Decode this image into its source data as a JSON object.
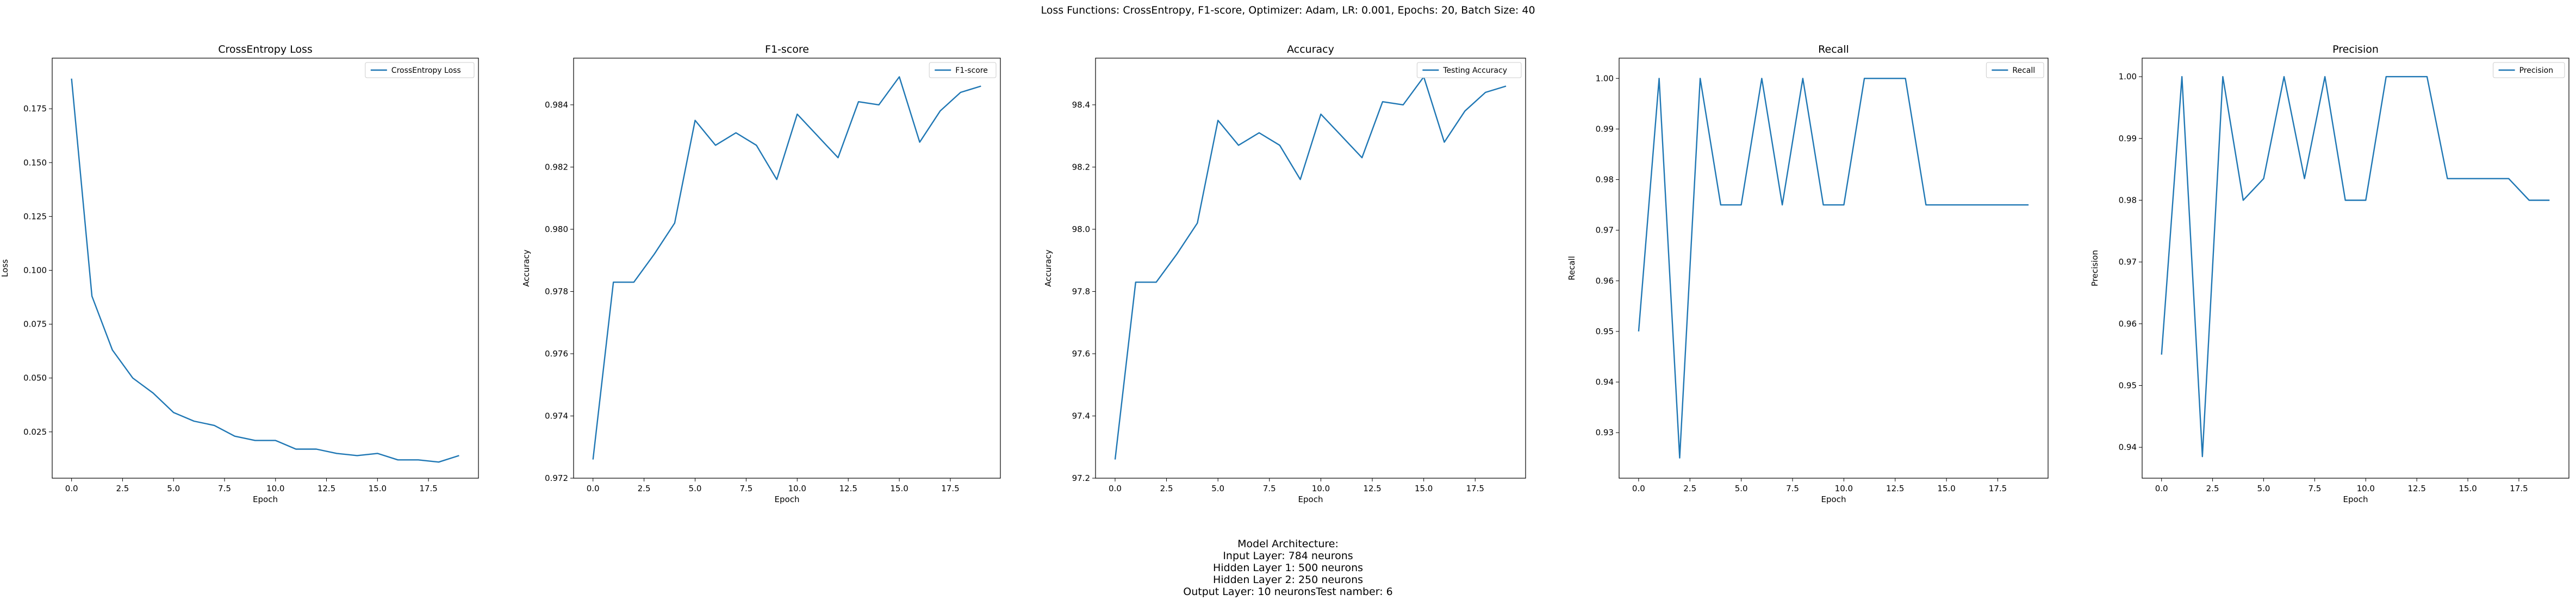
{
  "figure": {
    "suptitle": "Loss Functions: CrossEntropy, F1-score, Optimizer: Adam, LR: 0.001, Epochs: 20, Batch Size: 40",
    "architecture_lines": [
      "Model Architecture:",
      "Input Layer: 784 neurons",
      "Hidden Layer 1: 500 neurons",
      "Hidden Layer 2: 250 neurons",
      "Output Layer: 10 neuronsTest namber: 6"
    ],
    "line_color": "#1f77b4"
  },
  "chart_data": [
    {
      "type": "line",
      "title": "CrossEntropy Loss",
      "xlabel": "Epoch",
      "ylabel": "Loss",
      "legend": "top-right",
      "grid": false,
      "xlim": [
        -0.95,
        19.95
      ],
      "ylim": [
        0.0035,
        0.1985
      ],
      "xticks": [
        0,
        2.5,
        5,
        7.5,
        10,
        12.5,
        15,
        17.5
      ],
      "xtick_labels": [
        "0.0",
        "2.5",
        "5.0",
        "7.5",
        "10.0",
        "12.5",
        "15.0",
        "17.5"
      ],
      "yticks": [
        0.025,
        0.05,
        0.075,
        0.1,
        0.125,
        0.15,
        0.175
      ],
      "ytick_labels": [
        "0.025",
        "0.050",
        "0.075",
        "0.100",
        "0.125",
        "0.150",
        "0.175"
      ],
      "series": [
        {
          "name": "CrossEntropy Loss",
          "x": [
            0,
            1,
            2,
            3,
            4,
            5,
            6,
            7,
            8,
            9,
            10,
            11,
            12,
            13,
            14,
            15,
            16,
            17,
            18,
            19
          ],
          "y": [
            0.189,
            0.088,
            0.063,
            0.05,
            0.043,
            0.034,
            0.03,
            0.028,
            0.023,
            0.021,
            0.021,
            0.017,
            0.017,
            0.015,
            0.014,
            0.015,
            0.012,
            0.012,
            0.011,
            0.014
          ]
        }
      ]
    },
    {
      "type": "line",
      "title": "F1-score",
      "xlabel": "Epoch",
      "ylabel": "Accuracy",
      "legend": "top-right",
      "grid": false,
      "xlim": [
        -0.95,
        19.95
      ],
      "ylim": [
        0.972,
        0.9855
      ],
      "xticks": [
        0,
        2.5,
        5,
        7.5,
        10,
        12.5,
        15,
        17.5
      ],
      "xtick_labels": [
        "0.0",
        "2.5",
        "5.0",
        "7.5",
        "10.0",
        "12.5",
        "15.0",
        "17.5"
      ],
      "yticks": [
        0.972,
        0.974,
        0.976,
        0.978,
        0.98,
        0.982,
        0.984
      ],
      "ytick_labels": [
        "0.972",
        "0.974",
        "0.976",
        "0.978",
        "0.980",
        "0.982",
        "0.984"
      ],
      "series": [
        {
          "name": "F1-score",
          "x": [
            0,
            1,
            2,
            3,
            4,
            5,
            6,
            7,
            8,
            9,
            10,
            11,
            12,
            13,
            14,
            15,
            16,
            17,
            18,
            19
          ],
          "y": [
            0.9726,
            0.9783,
            0.9783,
            0.9792,
            0.9802,
            0.9835,
            0.9827,
            0.9831,
            0.9827,
            0.9816,
            0.9837,
            0.983,
            0.9823,
            0.9841,
            0.984,
            0.9849,
            0.9828,
            0.9838,
            0.9844,
            0.9846
          ]
        }
      ]
    },
    {
      "type": "line",
      "title": "Accuracy",
      "xlabel": "Epoch",
      "ylabel": "Accuracy",
      "legend": "top-right",
      "grid": false,
      "xlim": [
        -0.95,
        19.95
      ],
      "ylim": [
        97.2,
        98.55
      ],
      "xticks": [
        0,
        2.5,
        5,
        7.5,
        10,
        12.5,
        15,
        17.5
      ],
      "xtick_labels": [
        "0.0",
        "2.5",
        "5.0",
        "7.5",
        "10.0",
        "12.5",
        "15.0",
        "17.5"
      ],
      "yticks": [
        97.2,
        97.4,
        97.6,
        97.8,
        98.0,
        98.2,
        98.4
      ],
      "ytick_labels": [
        "97.2",
        "97.4",
        "97.6",
        "97.8",
        "98.0",
        "98.2",
        "98.4"
      ],
      "series": [
        {
          "name": "Testing Accuracy",
          "x": [
            0,
            1,
            2,
            3,
            4,
            5,
            6,
            7,
            8,
            9,
            10,
            11,
            12,
            13,
            14,
            15,
            16,
            17,
            18,
            19
          ],
          "y": [
            97.26,
            97.83,
            97.83,
            97.92,
            98.02,
            98.35,
            98.27,
            98.31,
            98.27,
            98.16,
            98.37,
            98.3,
            98.23,
            98.41,
            98.4,
            98.49,
            98.28,
            98.38,
            98.44,
            98.46
          ]
        }
      ]
    },
    {
      "type": "line",
      "title": "Recall",
      "xlabel": "Epoch",
      "ylabel": "Recall",
      "legend": "top-right",
      "grid": false,
      "xlim": [
        -0.95,
        19.95
      ],
      "ylim": [
        0.921,
        1.004
      ],
      "xticks": [
        0,
        2.5,
        5,
        7.5,
        10,
        12.5,
        15,
        17.5
      ],
      "xtick_labels": [
        "0.0",
        "2.5",
        "5.0",
        "7.5",
        "10.0",
        "12.5",
        "15.0",
        "17.5"
      ],
      "yticks": [
        0.93,
        0.94,
        0.95,
        0.96,
        0.97,
        0.98,
        0.99,
        1.0
      ],
      "ytick_labels": [
        "0.93",
        "0.94",
        "0.95",
        "0.96",
        "0.97",
        "0.98",
        "0.99",
        "1.00"
      ],
      "series": [
        {
          "name": "Recall",
          "x": [
            0,
            1,
            2,
            3,
            4,
            5,
            6,
            7,
            8,
            9,
            10,
            11,
            12,
            13,
            14,
            15,
            16,
            17,
            18,
            19
          ],
          "y": [
            0.95,
            1.0,
            0.925,
            1.0,
            0.975,
            0.975,
            1.0,
            0.975,
            1.0,
            0.975,
            0.975,
            1.0,
            1.0,
            1.0,
            0.975,
            0.975,
            0.975,
            0.975,
            0.975,
            0.975
          ]
        }
      ]
    },
    {
      "type": "line",
      "title": "Precision",
      "xlabel": "Epoch",
      "ylabel": "Precision",
      "legend": "top-right",
      "grid": false,
      "xlim": [
        -0.95,
        19.95
      ],
      "ylim": [
        0.935,
        1.003
      ],
      "xticks": [
        0,
        2.5,
        5,
        7.5,
        10,
        12.5,
        15,
        17.5
      ],
      "xtick_labels": [
        "0.0",
        "2.5",
        "5.0",
        "7.5",
        "10.0",
        "12.5",
        "15.0",
        "17.5"
      ],
      "yticks": [
        0.94,
        0.95,
        0.96,
        0.97,
        0.98,
        0.99,
        1.0
      ],
      "ytick_labels": [
        "0.94",
        "0.95",
        "0.96",
        "0.97",
        "0.98",
        "0.99",
        "1.00"
      ],
      "series": [
        {
          "name": "Precision",
          "x": [
            0,
            1,
            2,
            3,
            4,
            5,
            6,
            7,
            8,
            9,
            10,
            11,
            12,
            13,
            14,
            15,
            16,
            17,
            18,
            19
          ],
          "y": [
            0.955,
            1.0,
            0.9385,
            1.0,
            0.98,
            0.9835,
            1.0,
            0.9835,
            1.0,
            0.98,
            0.98,
            1.0,
            1.0,
            1.0,
            0.9835,
            0.9835,
            0.9835,
            0.9835,
            0.98,
            0.98
          ]
        }
      ]
    }
  ]
}
